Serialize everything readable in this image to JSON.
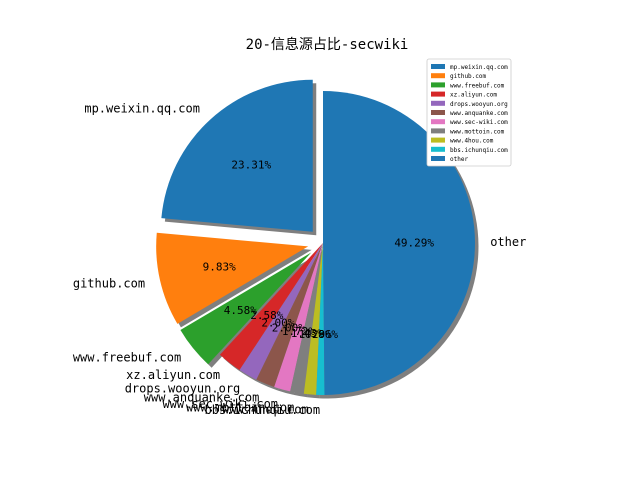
{
  "chart_data": {
    "type": "pie",
    "title": "20-信息源占比-secwiki",
    "slices": [
      {
        "label": "mp.weixin.qq.com",
        "value": 23.31,
        "pct_label": "23.31%",
        "color": "#1f77b4",
        "explode": true
      },
      {
        "label": "github.com",
        "value": 9.83,
        "pct_label": "9.83%",
        "color": "#ff7f0e",
        "explode": true
      },
      {
        "label": "www.freebuf.com",
        "value": 4.58,
        "pct_label": "4.58%",
        "color": "#2ca02c",
        "explode": true
      },
      {
        "label": "xz.aliyun.com",
        "value": 2.58,
        "pct_label": "2.58%",
        "color": "#d62728",
        "explode": false
      },
      {
        "label": "drops.wooyun.org",
        "value": 2.0,
        "pct_label": "2.00%",
        "color": "#9467bd",
        "explode": false
      },
      {
        "label": "www.anquanke.com",
        "value": 2.0,
        "pct_label": "2.00%",
        "color": "#8c564b",
        "explode": false
      },
      {
        "label": "www.sec-wiki.com",
        "value": 1.72,
        "pct_label": "1.72%",
        "color": "#e377c2",
        "explode": false
      },
      {
        "label": "www.mottoin.com",
        "value": 1.43,
        "pct_label": "1.43%",
        "color": "#7f7f7f",
        "explode": false
      },
      {
        "label": "www.4hou.com",
        "value": 1.29,
        "pct_label": "1.29%",
        "color": "#bcbd22",
        "explode": false
      },
      {
        "label": "bbs.ichunqiu.com",
        "value": 0.86,
        "pct_label": "0.86%",
        "color": "#17becf",
        "explode": false
      },
      {
        "label": "other",
        "value": 49.29,
        "pct_label": "49.29%",
        "color": "#1f77b4",
        "explode": false
      }
    ],
    "legend": {
      "placement": "upper-right",
      "entries": [
        "mp.weixin.qq.com",
        "github.com",
        "www.freebuf.com",
        "xz.aliyun.com",
        "drops.wooyun.org",
        "www.anquanke.com",
        "www.sec-wiki.com",
        "www.mottoin.com",
        "www.4hou.com",
        "bbs.ichunqiu.com",
        "other"
      ]
    },
    "shadow": true,
    "start_angle_deg": 90,
    "direction": "counterclockwise"
  }
}
